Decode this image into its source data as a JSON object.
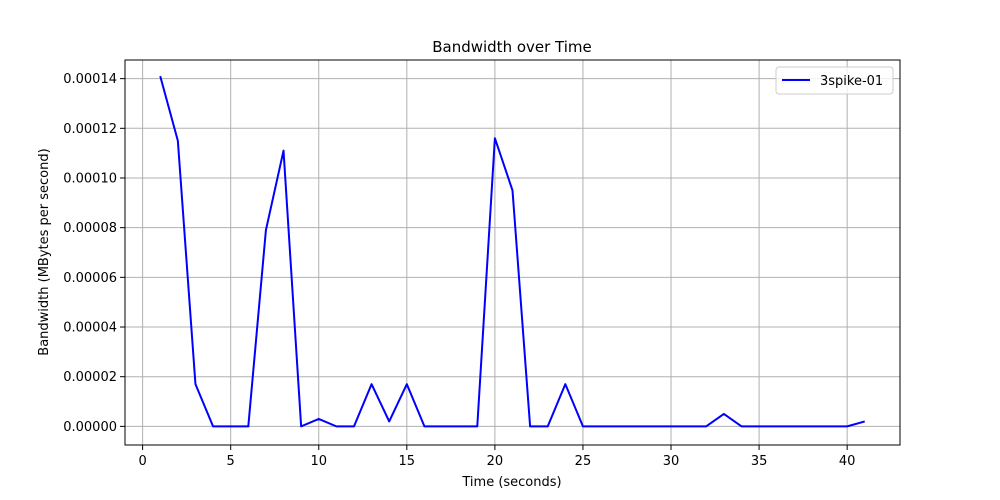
{
  "chart_data": {
    "type": "line",
    "title": "Bandwidth over Time",
    "xlabel": "Time (seconds)",
    "ylabel": "Bandwidth (MBytes per second)",
    "xlim": [
      -1,
      43
    ],
    "ylim": [
      -7.5e-06,
      0.0001475
    ],
    "xticks": [
      0,
      5,
      10,
      15,
      20,
      25,
      30,
      35,
      40
    ],
    "xtick_labels": [
      "0",
      "5",
      "10",
      "15",
      "20",
      "25",
      "30",
      "35",
      "40"
    ],
    "yticks": [
      0,
      2e-05,
      4e-05,
      6e-05,
      8e-05,
      0.0001,
      0.00012,
      0.00014
    ],
    "ytick_labels": [
      "0.00000",
      "0.00002",
      "0.00004",
      "0.00006",
      "0.00008",
      "0.00010",
      "0.00012",
      "0.00014"
    ],
    "grid": true,
    "legend_position": "top-right",
    "series": [
      {
        "name": "3spike-01",
        "color": "#0000ff",
        "x": [
          1,
          2,
          3,
          4,
          5,
          6,
          7,
          8,
          9,
          10,
          11,
          12,
          13,
          14,
          15,
          16,
          17,
          18,
          19,
          20,
          21,
          22,
          23,
          24,
          25,
          26,
          27,
          28,
          29,
          30,
          31,
          32,
          33,
          34,
          35,
          36,
          37,
          38,
          39,
          40,
          41
        ],
        "y": [
          0.000141,
          0.000115,
          1.7e-05,
          0,
          0,
          0,
          7.9e-05,
          0.000111,
          0,
          3e-06,
          0,
          0,
          1.7e-05,
          2e-06,
          1.7e-05,
          0,
          0,
          0,
          0,
          0.000116,
          9.5e-05,
          0,
          0,
          1.7e-05,
          0,
          0,
          0,
          0,
          0,
          0,
          0,
          0,
          5e-06,
          0,
          0,
          0,
          0,
          0,
          0,
          0,
          2e-06
        ]
      }
    ]
  }
}
